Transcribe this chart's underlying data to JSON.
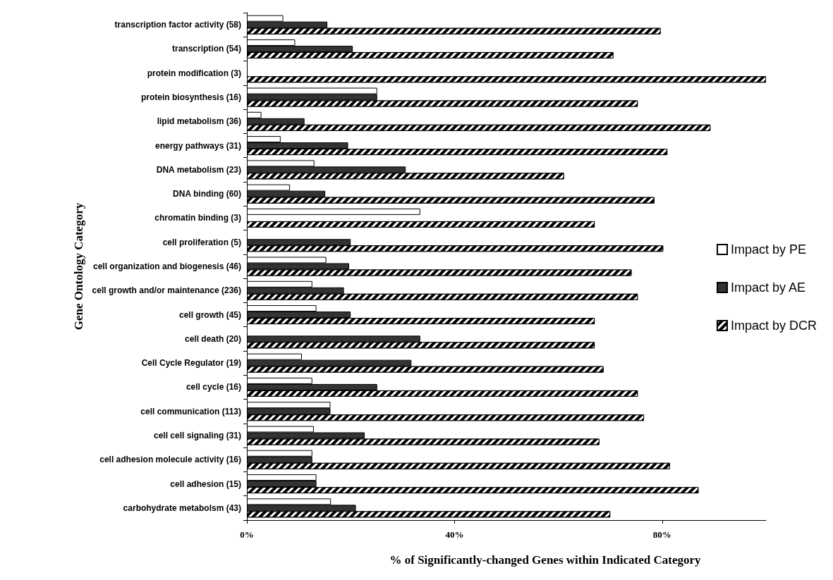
{
  "chart_data": {
    "type": "bar",
    "orientation": "horizontal",
    "xlabel": "% of Significantly-changed Genes within Indicated Category",
    "ylabel": "Gene Ontology Category",
    "categories": [
      "transcription factor activity (58)",
      "transcription (54)",
      "protein modification (3)",
      "protein biosynthesis (16)",
      "lipid metabolism (36)",
      "energy pathways (31)",
      "DNA metabolism (23)",
      "DNA binding (60)",
      "chromatin binding (3)",
      "cell proliferation (5)",
      "cell organization and biogenesis (46)",
      "cell growth and/or maintenance (236)",
      "cell growth (45)",
      "cell death (20)",
      "Cell Cycle Regulator (19)",
      "cell cycle (16)",
      "cell communication (113)",
      "cell cell signaling (31)",
      "cell adhesion molecule activity (16)",
      "cell adhesion (15)",
      "carbohydrate metabolsm (43)"
    ],
    "series": [
      {
        "name": "Impact by PE",
        "color": "#ffffff",
        "values": [
          7.0,
          9.3,
          0,
          25.1,
          2.8,
          6.5,
          13,
          8.3,
          33.4,
          0,
          15.3,
          12.6,
          13.4,
          0,
          10.6,
          12.6,
          16.1,
          12.9,
          12.6,
          13.4,
          16.2
        ]
      },
      {
        "name": "Impact by AE",
        "color": "#333333",
        "values": [
          15.5,
          20.4,
          0,
          25.1,
          11.1,
          19.5,
          30.6,
          15.1,
          0,
          20,
          19.7,
          18.7,
          20,
          33.4,
          31.7,
          25.1,
          16.1,
          22.7,
          12.6,
          13.4,
          21
        ]
      },
      {
        "name": "Impact by DCR",
        "color": "#000000",
        "values": [
          79.7,
          70.6,
          100,
          75.3,
          89.3,
          81,
          61.1,
          78.5,
          67,
          80.2,
          74.1,
          75.3,
          67,
          67,
          68.7,
          75.3,
          76.5,
          67.9,
          81.5,
          87,
          70
        ]
      }
    ],
    "xlim": [
      0,
      100
    ],
    "xticks": [
      {
        "value": 0,
        "label": "0%"
      },
      {
        "value": 40,
        "label": "40%"
      },
      {
        "value": 80,
        "label": "80%"
      }
    ],
    "legend": "right",
    "grid": false
  }
}
